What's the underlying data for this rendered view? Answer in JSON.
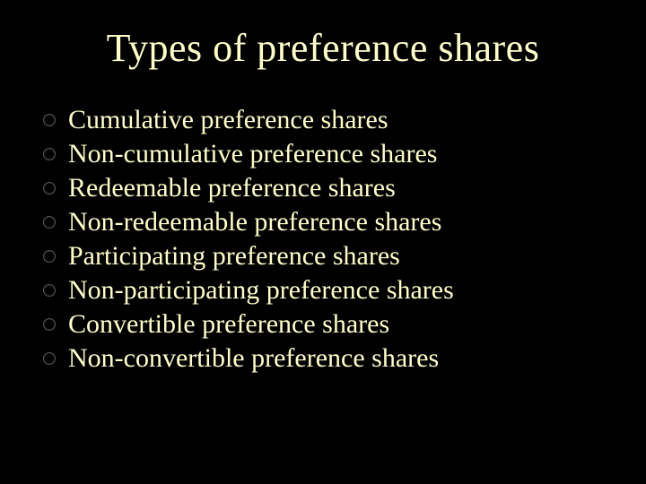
{
  "slide": {
    "title": "Types of preference shares",
    "title_color": "#FFFFCC",
    "title_fontsize": 44,
    "background_color": "#000000",
    "bullet_fill": "#000000",
    "bullet_border": "#555555",
    "item_color": "#FFFFCC",
    "item_fontsize": 30,
    "items": [
      {
        "label": "Cumulative preference shares"
      },
      {
        "label": "Non-cumulative preference shares"
      },
      {
        "label": "Redeemable preference shares"
      },
      {
        "label": "Non-redeemable preference shares"
      },
      {
        "label": "Participating preference shares"
      },
      {
        "label": "Non-participating preference shares"
      },
      {
        "label": "Convertible preference shares"
      },
      {
        "label": "Non-convertible preference shares"
      }
    ]
  }
}
